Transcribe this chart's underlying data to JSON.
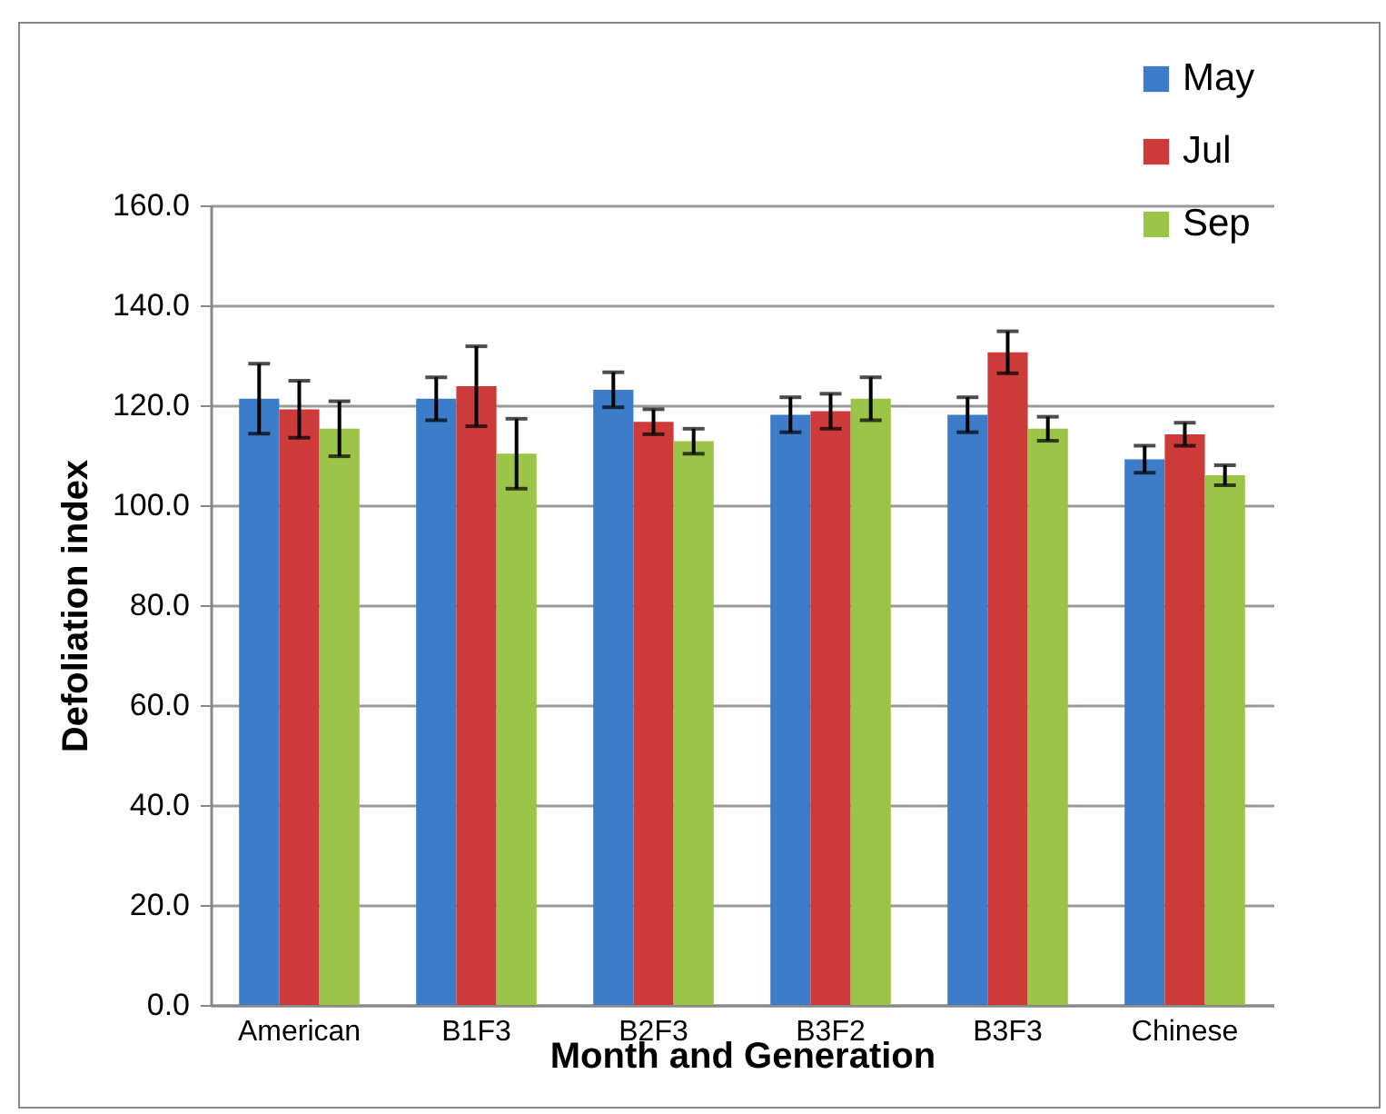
{
  "chart_data": {
    "type": "bar",
    "xlabel": "Month and Generation",
    "ylabel": "Defoliation index",
    "categories": [
      "American",
      "B1F3",
      "B2F3",
      "B3F2",
      "B3F3",
      "Chinese"
    ],
    "series": [
      {
        "name": "May",
        "color": "#3d7cc9",
        "values": [
          121.3,
          121.3,
          123.1,
          118.1,
          118.1,
          109.2
        ],
        "errors": [
          7,
          4.3,
          3.5,
          3.5,
          3.5,
          2.7
        ]
      },
      {
        "name": "Jul",
        "color": "#cc3b39",
        "values": [
          119.2,
          123.8,
          116.7,
          118.8,
          130.6,
          114.2
        ],
        "errors": [
          5.7,
          8,
          2.5,
          3.5,
          4.2,
          2.3
        ]
      },
      {
        "name": "Sep",
        "color": "#9bc449",
        "values": [
          115.3,
          110.3,
          112.8,
          121.3,
          115.3,
          106.0
        ],
        "errors": [
          5.5,
          7,
          2.5,
          4.3,
          2.4,
          2
        ]
      }
    ],
    "ylim": [
      0,
      160
    ],
    "yticks": [
      {
        "value": 0,
        "label": "0.0"
      },
      {
        "value": 20,
        "label": "20.0"
      },
      {
        "value": 40,
        "label": "40.0"
      },
      {
        "value": 60,
        "label": "60.0"
      },
      {
        "value": 80,
        "label": "80.0"
      },
      {
        "value": 100,
        "label": "100.0"
      },
      {
        "value": 120,
        "label": "120.0"
      },
      {
        "value": 140,
        "label": "140.0"
      },
      {
        "value": 160,
        "label": "160.0"
      }
    ],
    "grid": "y",
    "legend": "top right"
  }
}
